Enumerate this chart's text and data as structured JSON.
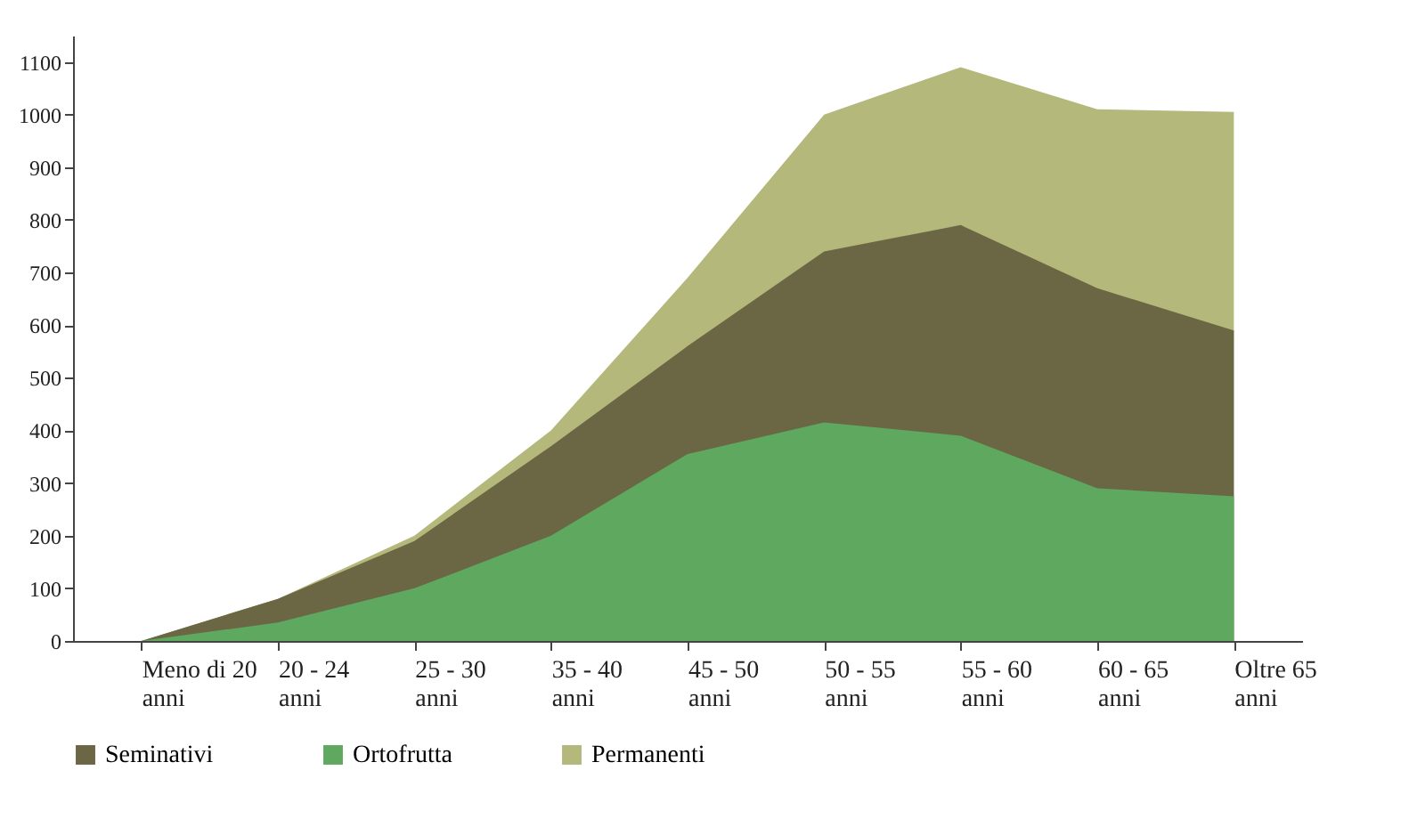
{
  "chart_data": {
    "type": "area",
    "categories": [
      "Meno di 20 anni",
      "20 - 24 anni",
      "25 - 30 anni",
      "35 - 40 anni",
      "45 - 50 anni",
      "50 - 55 anni",
      "55 - 60 anni",
      "60 - 65 anni",
      "Oltre 65 anni"
    ],
    "series": [
      {
        "name": "Seminativi",
        "color": "#6b6644",
        "values": [
          0,
          80,
          190,
          370,
          560,
          740,
          790,
          670,
          590
        ]
      },
      {
        "name": "Ortofrutta",
        "color": "#5fa860",
        "values": [
          0,
          35,
          100,
          200,
          355,
          415,
          390,
          290,
          275
        ]
      },
      {
        "name": "Permanenti",
        "color": "#b4b87a",
        "values": [
          0,
          80,
          200,
          400,
          690,
          1000,
          1090,
          1010,
          1005
        ]
      }
    ],
    "ylim": [
      0,
      1150
    ],
    "yticks": [
      0,
      100,
      200,
      300,
      400,
      500,
      600,
      700,
      800,
      900,
      1000,
      1100
    ],
    "grid": false,
    "legend": "bottom"
  }
}
